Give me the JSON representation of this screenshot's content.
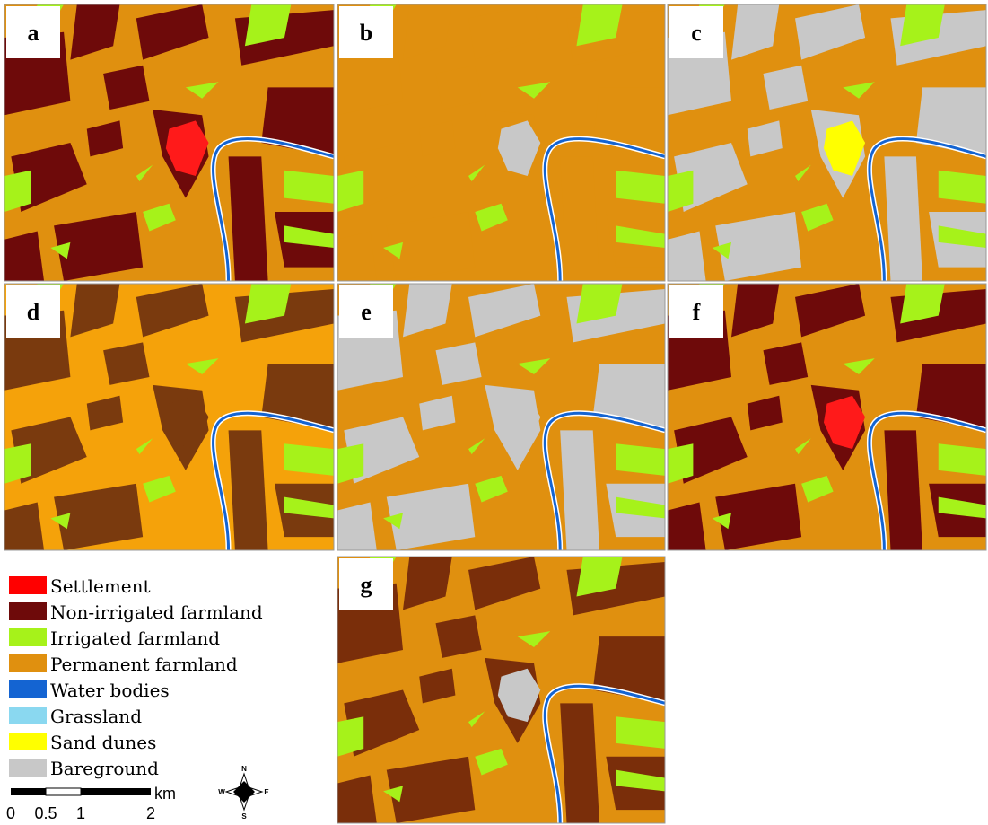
{
  "panels": [
    {
      "label": "a",
      "colors": {
        "base": "#e0900f",
        "dark": "#6e0a0a",
        "center": "#ff1a1a"
      }
    },
    {
      "label": "b",
      "colors": {
        "base": "#e0900f",
        "dark": "#e0900f",
        "center": "#c8c8c8"
      }
    },
    {
      "label": "c",
      "colors": {
        "base": "#e0900f",
        "dark": "#c8c8c8",
        "center": "#ffff00"
      }
    },
    {
      "label": "d",
      "colors": {
        "base": "#f5a20a",
        "dark": "#7a3a0e",
        "center": "#7a3a0e"
      }
    },
    {
      "label": "e",
      "colors": {
        "base": "#e0900f",
        "dark": "#c8c8c8",
        "center": "#c8c8c8"
      }
    },
    {
      "label": "f",
      "colors": {
        "base": "#e0900f",
        "dark": "#6e0a0a",
        "center": "#ff1a1a"
      }
    },
    {
      "label": "g",
      "colors": {
        "base": "#e0900f",
        "dark": "#7a2e0a",
        "center": "#c8c8c8"
      }
    }
  ],
  "legend": [
    {
      "label": "Settlement",
      "color": "#ff0000"
    },
    {
      "label": "Non-irrigated farmland",
      "color": "#6e0a0a"
    },
    {
      "label": "Irrigated farmland",
      "color": "#a6f21a"
    },
    {
      "label": "Permanent farmland",
      "color": "#e0900f"
    },
    {
      "label": "Water bodies",
      "color": "#1464d2"
    },
    {
      "label": "Grassland",
      "color": "#8ad8f0"
    },
    {
      "label": "Sand dunes",
      "color": "#ffff00"
    },
    {
      "label": "Bareground",
      "color": "#c8c8c8"
    }
  ],
  "scale_bar": {
    "labels": [
      "0",
      "0.5",
      "1",
      "2"
    ],
    "unit": "km"
  },
  "compass": {
    "north": "N",
    "east": "E",
    "south": "S",
    "west": "W"
  }
}
